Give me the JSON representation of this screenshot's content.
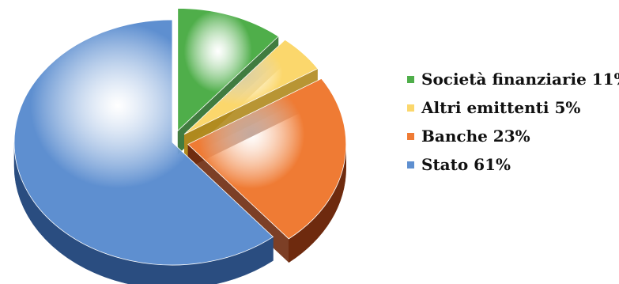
{
  "chart_data": {
    "type": "pie",
    "style": "3d-exploded",
    "slices": [
      {
        "name": "Società finanziarie",
        "value": 11,
        "legend_label": "Società finanziarie 11%",
        "color": "#4fae4a",
        "side_color": "#2c6e2b",
        "exploded": true
      },
      {
        "name": "Altri emittenti",
        "value": 5,
        "legend_label": "Altri emittenti 5%",
        "color": "#fbd76c",
        "side_color": "#b08a1e",
        "exploded": true
      },
      {
        "name": "Banche",
        "value": 23,
        "legend_label": "Banche 23%",
        "color": "#ef7b34",
        "side_color": "#6e2a0e",
        "exploded": true
      },
      {
        "name": "Stato",
        "value": 61,
        "legend_label": "Stato 61%",
        "color": "#5e8fd0",
        "side_color": "#2a4d80",
        "exploded": false
      }
    ],
    "legend_position": "right"
  }
}
